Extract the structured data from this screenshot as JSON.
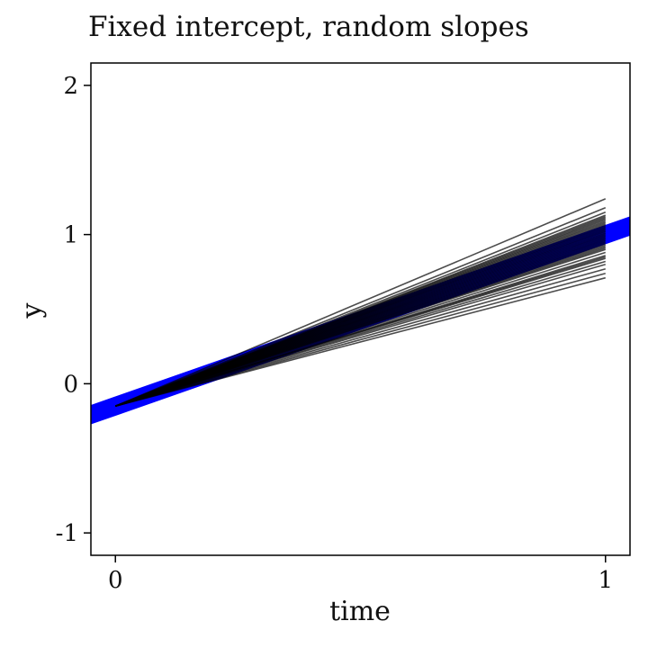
{
  "chart_data": {
    "type": "line",
    "title": "Fixed intercept, random slopes",
    "xlabel": "time",
    "ylabel": "y",
    "xlim": [
      -0.05,
      1.05
    ],
    "ylim": [
      -1.15,
      2.15
    ],
    "x_ticks": [
      0,
      1
    ],
    "x_tick_labels": [
      "0",
      "1"
    ],
    "y_ticks": [
      -1,
      0,
      1,
      2
    ],
    "y_tick_labels": [
      "-1",
      "0",
      "1",
      "2"
    ],
    "grid": false,
    "legend": "none",
    "fixed_line": {
      "color": "#0000ff",
      "intercept": -0.15,
      "slope": 1.15,
      "band_halfwidth": 0.065
    },
    "random_lines": {
      "color": "#000000",
      "x": [
        0,
        1
      ],
      "intercept": -0.15,
      "end_values": [
        1.24,
        1.18,
        1.15,
        1.13,
        1.12,
        1.11,
        1.1,
        1.09,
        1.08,
        1.07,
        1.06,
        1.05,
        1.04,
        1.03,
        1.02,
        1.01,
        1.0,
        0.99,
        0.98,
        0.97,
        0.96,
        0.95,
        0.94,
        0.93,
        0.92,
        0.91,
        0.9,
        0.88,
        0.86,
        0.85,
        0.84,
        0.82,
        0.8,
        0.77,
        0.74,
        0.71
      ]
    }
  }
}
